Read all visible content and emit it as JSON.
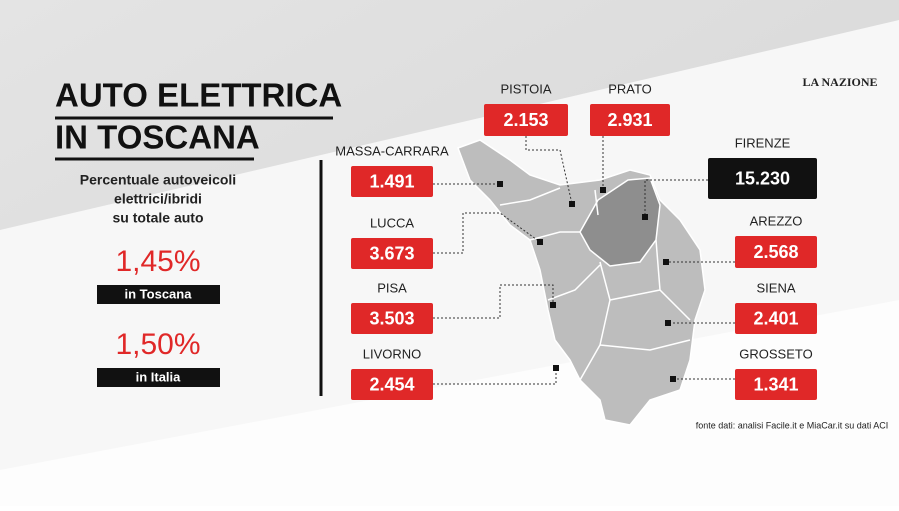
{
  "brand": "LA NAZIONE",
  "header": {
    "title_lines": [
      "AUTO ELETTRICA",
      "IN TOSCANA"
    ],
    "subtitle_lines": [
      "Percentuale autoveicoli",
      "elettrici/ibridi",
      "su totale auto"
    ]
  },
  "stats": [
    {
      "value": "1,45%",
      "label": "in Toscana"
    },
    {
      "value": "1,50%",
      "label": "in Italia"
    }
  ],
  "provinces": [
    {
      "name": "PISTOIA",
      "value": "2.153"
    },
    {
      "name": "PRATO",
      "value": "2.931"
    },
    {
      "name": "MASSA-CARRARA",
      "value": "1.491"
    },
    {
      "name": "LUCCA",
      "value": "3.673"
    },
    {
      "name": "PISA",
      "value": "3.503"
    },
    {
      "name": "LIVORNO",
      "value": "2.454"
    },
    {
      "name": "FIRENZE",
      "value": "15.230"
    },
    {
      "name": "AREZZO",
      "value": "2.568"
    },
    {
      "name": "SIENA",
      "value": "2.401"
    },
    {
      "name": "GROSSETO",
      "value": "1.341"
    }
  ],
  "source": "fonte dati: analisi Facile.it e MiaCar.it su dati ACI"
}
